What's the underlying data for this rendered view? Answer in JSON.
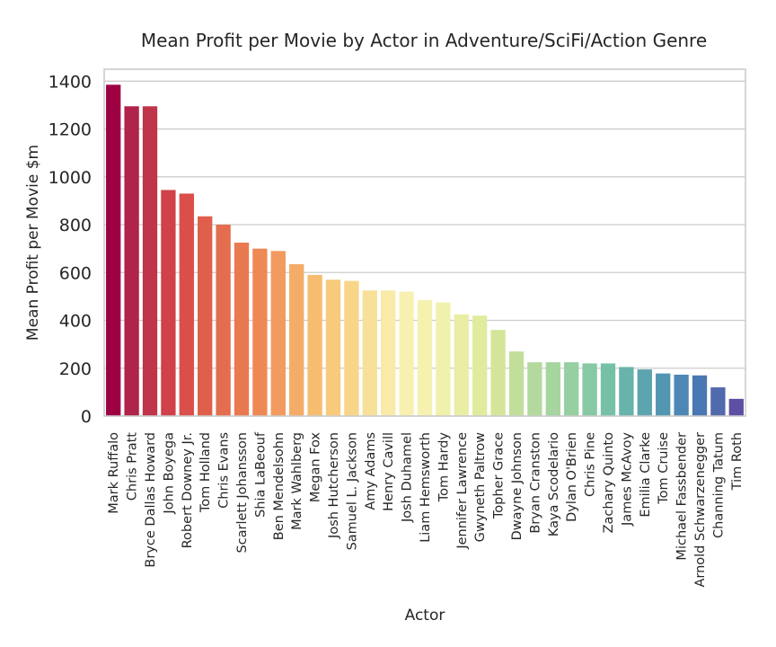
{
  "chart_data": {
    "type": "bar",
    "title": "Mean Profit per Movie by Actor in Adventure/SciFi/Action Genre",
    "xlabel": "Actor",
    "ylabel": "Mean Profit per Movie $m",
    "ylim": [
      0,
      1450
    ],
    "yticks": [
      0,
      200,
      400,
      600,
      800,
      1000,
      1200,
      1400
    ],
    "grid": "horizontal",
    "palette": "Spectral",
    "categories": [
      "Mark Ruffalo",
      "Chris Pratt",
      "Bryce Dallas Howard",
      "John Boyega",
      "Robert Downey Jr.",
      "Tom Holland",
      "Chris Evans",
      "Scarlett Johansson",
      "Shia LaBeouf",
      "Ben Mendelsohn",
      "Mark Wahlberg",
      "Megan Fox",
      "Josh Hutcherson",
      "Samuel L. Jackson",
      "Amy Adams",
      "Henry Cavill",
      "Josh Duhamel",
      "Liam Hemsworth",
      "Tom Hardy",
      "Jennifer Lawrence",
      "Gwyneth Paltrow",
      "Topher Grace",
      "Dwayne Johnson",
      "Bryan Cranston",
      "Kaya Scodelario",
      "Dylan O'Brien",
      "Chris Pine",
      "Zachary Quinto",
      "James McAvoy",
      "Emilia Clarke",
      "Tom Cruise",
      "Michael Fassbender",
      "Arnold Schwarzenegger",
      "Channing Tatum",
      "Tim Roth"
    ],
    "values": [
      1385,
      1295,
      1295,
      945,
      930,
      835,
      800,
      725,
      700,
      690,
      635,
      590,
      570,
      565,
      525,
      525,
      520,
      485,
      475,
      425,
      420,
      360,
      270,
      225,
      225,
      225,
      220,
      220,
      205,
      195,
      178,
      173,
      170,
      120,
      72
    ],
    "colors": [
      "#9e0142",
      "#b0234b",
      "#c03549",
      "#d0414a",
      "#db4e4a",
      "#e05f4b",
      "#e46d4d",
      "#e9794f",
      "#ee8955",
      "#f29a5f",
      "#f4ad68",
      "#f6bd71",
      "#f7ca7c",
      "#f8d589",
      "#f8e098",
      "#f9eaa7",
      "#f8f0b1",
      "#f5f1af",
      "#f0f1ac",
      "#e9eea4",
      "#e1eb9d",
      "#d4e599",
      "#c2de9b",
      "#b4d99f",
      "#a6d59f",
      "#96cfa2",
      "#86c9a4",
      "#76c1a6",
      "#68b3aa",
      "#5ca4ae",
      "#5396b1",
      "#4c87b5",
      "#4a78b2",
      "#5169ad",
      "#5e4fa2"
    ]
  }
}
